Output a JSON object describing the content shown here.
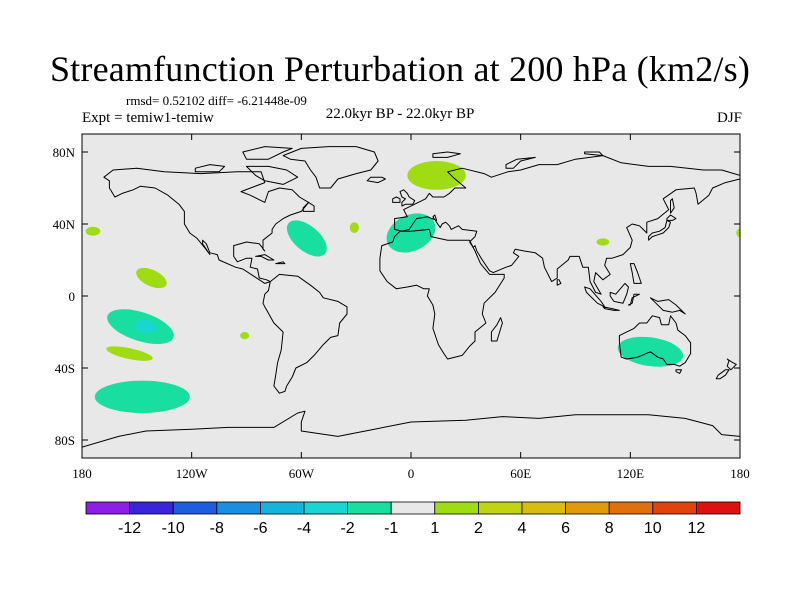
{
  "header": {
    "title": "Streamfunction Perturbation at 200 hPa (km2/s)",
    "stats": "rmsd= 0.52102 diff= -6.21448e-09",
    "experiment": "Expt = temiw1-temiw",
    "period": "22.0kyr BP - 22.0kyr BP",
    "season": "DJF"
  },
  "colors": {
    "ocean_land_fill": "#e8e8e8",
    "coast": "#000000",
    "frame": "#000000"
  },
  "chart_data": {
    "type": "heatmap",
    "title": "Streamfunction Perturbation at 200 hPa (km2/s)",
    "projection": "cylindrical equidistant",
    "xlim": [
      -180,
      180
    ],
    "ylim": [
      -90,
      90
    ],
    "x_ticks": [
      {
        "value": -180,
        "label": "180"
      },
      {
        "value": -120,
        "label": "120W"
      },
      {
        "value": -60,
        "label": "60W"
      },
      {
        "value": 0,
        "label": "0"
      },
      {
        "value": 60,
        "label": "60E"
      },
      {
        "value": 120,
        "label": "120E"
      },
      {
        "value": 180,
        "label": "180"
      }
    ],
    "y_ticks": [
      {
        "value": 80,
        "label": "80N"
      },
      {
        "value": 40,
        "label": "40N"
      },
      {
        "value": 0,
        "label": "0"
      },
      {
        "value": -40,
        "label": "40S"
      },
      {
        "value": -80,
        "label": "80S"
      }
    ],
    "colorbar": {
      "colors": [
        "#8c1ee8",
        "#3a25d8",
        "#1e5de0",
        "#1a8ee0",
        "#14b4dc",
        "#1ad6d2",
        "#18dfa0",
        "#e8e8e8",
        "#a0dc14",
        "#c0d414",
        "#d8bc10",
        "#e09a0c",
        "#e0700c",
        "#e0440c",
        "#e01010"
      ],
      "labels": [
        "-12",
        "-10",
        "-8",
        "-6",
        "-4",
        "-2",
        "-1",
        "1",
        "2",
        "4",
        "6",
        "8",
        "10",
        "12"
      ]
    },
    "anomalies": [
      {
        "name": "scandinavia-positive",
        "lon": 14,
        "lat": 67,
        "rlon": 16,
        "rlat": 8,
        "rot": 0,
        "level": "2",
        "color": "#a0dc14"
      },
      {
        "name": "north-africa-negative",
        "lon": 0,
        "lat": 35,
        "rlon": 14,
        "rlat": 10,
        "rot": -25,
        "level": "-1",
        "color": "#18dfa0"
      },
      {
        "name": "north-atlantic-negative",
        "lon": -57,
        "lat": 32,
        "rlon": 13,
        "rlat": 7,
        "rot": 40,
        "level": "-1",
        "color": "#18dfa0"
      },
      {
        "name": "mid-atlantic-positive",
        "lon": -31,
        "lat": 38,
        "rlon": 2.5,
        "rlat": 3,
        "rot": 0,
        "level": "2",
        "color": "#a0dc14"
      },
      {
        "name": "west-pacific-positive",
        "lon": -174,
        "lat": 36,
        "rlon": 4,
        "rlat": 2.5,
        "rot": 0,
        "level": "2",
        "color": "#a0dc14"
      },
      {
        "name": "central-pacific-positive",
        "lon": -142,
        "lat": 10,
        "rlon": 9,
        "rlat": 4.5,
        "rot": 25,
        "level": "2",
        "color": "#a0dc14"
      },
      {
        "name": "south-pacific-negative",
        "lon": -148,
        "lat": -17,
        "rlon": 19,
        "rlat": 8,
        "rot": 18,
        "level": "-1",
        "color": "#18dfa0"
      },
      {
        "name": "south-pacific-core",
        "lon": -145,
        "lat": -17,
        "rlon": 6,
        "rlat": 3.5,
        "rot": 10,
        "level": "-2",
        "color": "#1ad6d2"
      },
      {
        "name": "south-pacific-band-positive",
        "lon": -154,
        "lat": -32,
        "rlon": 13,
        "rlat": 3,
        "rot": 12,
        "level": "2",
        "color": "#a0dc14"
      },
      {
        "name": "southern-ocean-negative",
        "lon": -147,
        "lat": -56,
        "rlon": 26,
        "rlat": 9,
        "rot": 0,
        "level": "-1",
        "color": "#18dfa0"
      },
      {
        "name": "east-pacific-positive",
        "lon": -91,
        "lat": -22,
        "rlon": 2.5,
        "rlat": 2,
        "rot": 0,
        "level": "2",
        "color": "#a0dc14"
      },
      {
        "name": "china-positive",
        "lon": 105,
        "lat": 30,
        "rlon": 3.5,
        "rlat": 2,
        "rot": 0,
        "level": "2",
        "color": "#a0dc14"
      },
      {
        "name": "australia-negative",
        "lon": 131,
        "lat": -31,
        "rlon": 18,
        "rlat": 8,
        "rot": 8,
        "level": "-1",
        "color": "#18dfa0"
      },
      {
        "name": "dateline-positive",
        "lon": 180,
        "lat": 35,
        "rlon": 2,
        "rlat": 2.5,
        "rot": 0,
        "level": "2",
        "color": "#a0dc14"
      }
    ]
  }
}
